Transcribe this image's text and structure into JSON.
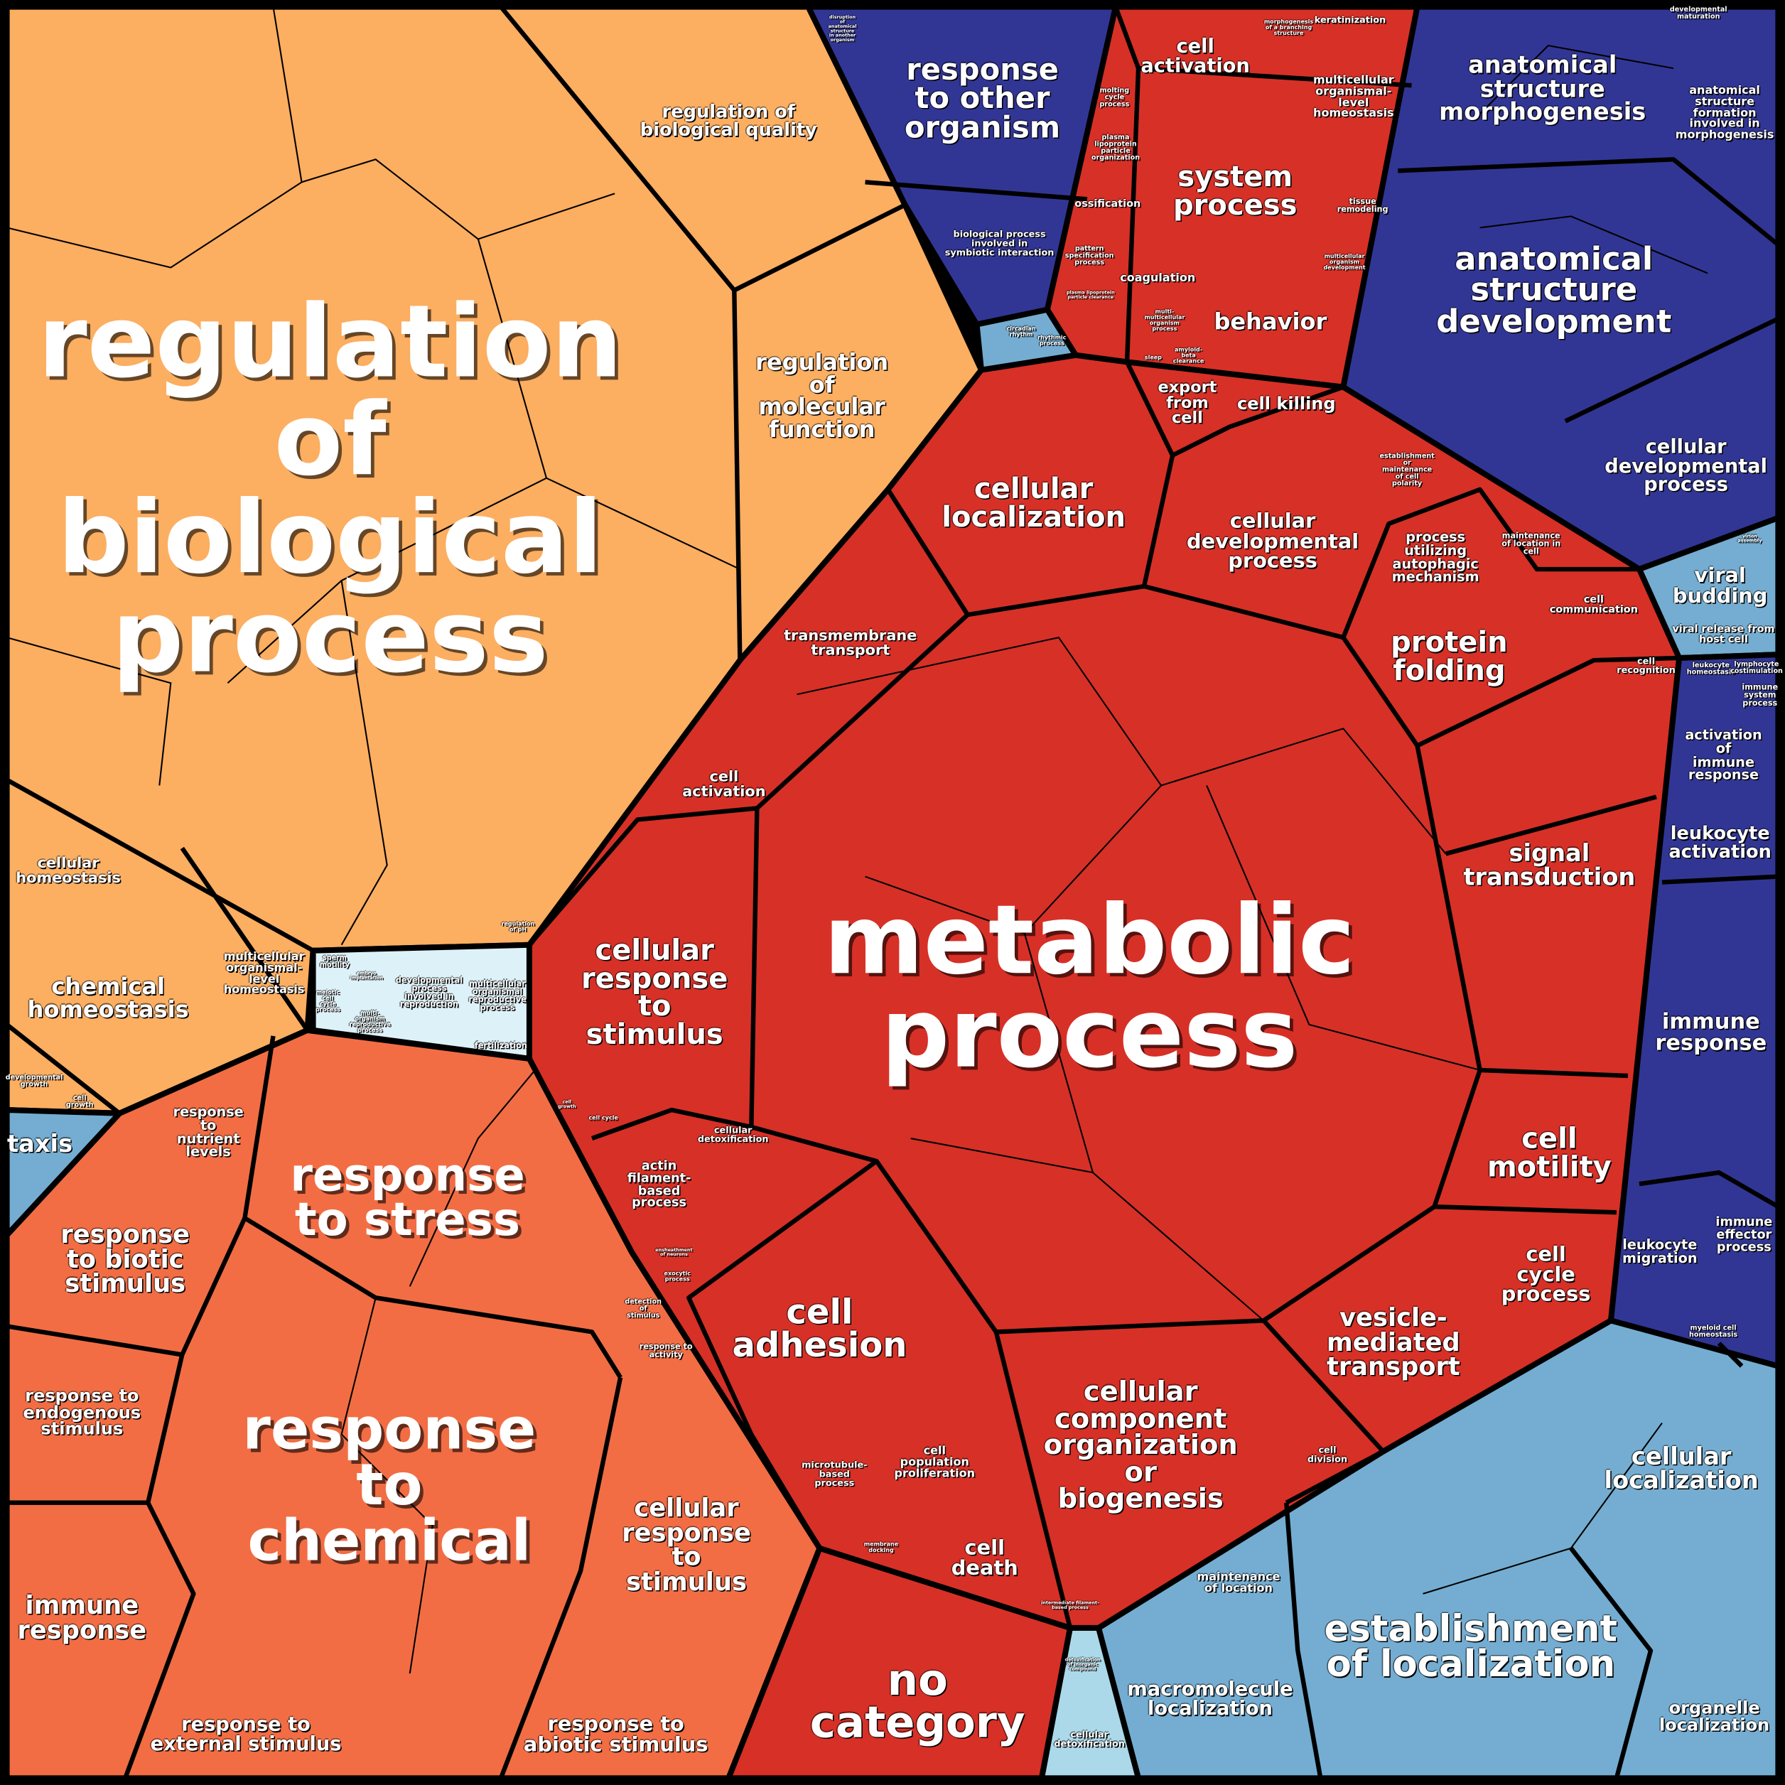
{
  "colors": {
    "orange": "#fcae61",
    "orange_red": "#f26d44",
    "red": "#d73027",
    "dark_blue": "#313695",
    "light_blue": "#74add1",
    "pale_blue": "#ddf1f8",
    "sky_blue": "#abd9e9",
    "border": "#000000",
    "text": "#ffffff"
  },
  "labels": {
    "regulation_of_biological_process": "regulation\nof\nbiological\nprocess",
    "regulation_of_biological_quality": "regulation of\nbiological quality",
    "regulation_of_molecular_function": "regulation\nof\nmolecular\nfunction",
    "cellular_homeostasis": "cellular\nhomeostasis",
    "chemical_homeostasis": "chemical\nhomeostasis",
    "multicellular_organismal_level_homeostasis_orange": "multicellular\norganismal-\nlevel\nhomeostasis",
    "developmental_growth": "developmental\ngrowth",
    "cell_growth_orange": "cell\ngrowth",
    "regulation_of_ph": "regulation\nof pH",
    "sperm_motility": "sperm\nmotility",
    "embryo_implantation": "embryo\nimplantation",
    "developmental_process_involved_in_reproduction": "developmental\nprocess\ninvolved in\nreproduction",
    "multicellular_organismal_reproductive_process": "multicellular\norganismal\nreproductive\nprocess",
    "meiotic_cell_cycle_process": "meiotic\ncell\ncycle\nprocess",
    "multi_organism_reproductive_process": "multi-\norganism\nreproductive\nprocess",
    "fertilization": "fertilization",
    "taxis": "taxis",
    "response_to_nutrient_levels": "response\nto\nnutrient\nlevels",
    "response_to_stress": "response\nto stress",
    "response_to_biotic_stimulus": "response\nto biotic\nstimulus",
    "response_to_endogenous_stimulus": "response to\nendogenous\nstimulus",
    "response_to_chemical": "response\nto\nchemical",
    "cellular_response_to_stimulus_orange": "cellular\nresponse\nto\nstimulus",
    "immune_response_orange": "immune\nresponse",
    "response_to_external_stimulus": "response to\nexternal stimulus",
    "response_to_abiotic_stimulus": "response to\nabiotic stimulus",
    "detection_of_stimulus": "detection\nof\nstimulus",
    "response_to_activity": "response to\nactivity",
    "response_to_other_organism": "response\nto other\norganism",
    "biological_process_involved_in_symbiotic_interaction": "biological process\ninvolved in\nsymbiotic interaction",
    "disruption_of_anatomical_structure": "disruption\nof\nanatomical\nstructure\nin another\norganism",
    "circadian_rhythm": "circadian\nrhythm",
    "rhythmic_process": "rhythmic\nprocess",
    "cell_activation_top": "cell\nactivation",
    "system_process": "system\nprocess",
    "multicellular_organismal_level_homeostasis_red": "multicellular\norganismal-\nlevel\nhomeostasis",
    "keratinization": "keratinization",
    "morphogenesis_of_a_branching_structure": "morphogenesis\nof a branching\nstructure",
    "molting_cycle_process": "molting\ncycle\nprocess",
    "plasma_lipoprotein_particle_organization": "plasma\nlipoprotein\nparticle\norganization",
    "ossification": "ossification",
    "pattern_specification_process": "pattern\nspecification\nprocess",
    "coagulation": "coagulation",
    "behavior": "behavior",
    "tissue_remodeling": "tissue\nremodeling",
    "multicellular_organism_development": "multicellular\norganism\ndevelopment",
    "multi_multicellular_organism_process": "multi-\nmulticellular\norganism\nprocess",
    "sleep": "sleep",
    "amyloid_beta_clearance": "amyloid-\nbeta\nclearance",
    "plasma_lipoprotein_particle_clearance": "plasma lipoprotein\nparticle clearance",
    "anatomical_structure_morphogenesis": "anatomical\nstructure\nmorphogenesis",
    "anatomical_structure_formation_involved_in_morphogenesis": "anatomical\nstructure\nformation\ninvolved in\nmorphogenesis",
    "developmental_maturation": "developmental\nmaturation",
    "anatomical_structure_development": "anatomical\nstructure\ndevelopment",
    "cellular_developmental_process_blue": "cellular\ndevelopmental\nprocess",
    "viral_budding": "viral\nbudding",
    "viral_release_from_host_cell": "viral release from\nhost cell",
    "virion_assembly": "virion\nassembly",
    "leukocyte_homeostasis": "leukocyte\nhomeostasis",
    "lymphocyte_costimulation": "lymphocyte\ncostimulation",
    "immune_system_process": "immune\nsystem\nprocess",
    "activation_of_immune_response": "activation\nof\nimmune\nresponse",
    "leukocyte_activation": "leukocyte\nactivation",
    "immune_response_blue": "immune\nresponse",
    "leukocyte_migration": "leukocyte\nmigration",
    "immune_effector_process": "immune\neffector\nprocess",
    "myeloid_cell_homeostasis": "myeloid cell\nhomeostasis",
    "cellular_localization_lightblue": "cellular\nlocalization",
    "establishment_of_localization": "establishment\nof localization",
    "macromolecule_localization": "macromolecule\nlocalization",
    "maintenance_of_location": "maintenance\nof location",
    "organelle_localization": "organelle\nlocalization",
    "detoxification_of_inorganic_compound": "detoxification\nof inorganic\ncompound",
    "cellular_detoxification_sky": "cellular\ndetoxification",
    "no_category": "no\ncategory",
    "cellular_localization_red": "cellular\nlocalization",
    "export_from_cell": "export\nfrom\ncell",
    "cell_killing": "cell killing",
    "cellular_developmental_process_red": "cellular\ndevelopmental\nprocess",
    "establishment_or_maintenance_of_cell_polarity": "establishment\nor\nmaintenance\nof cell\npolarity",
    "process_utilizing_autophagic_mechanism": "process\nutilizing\nautophagic\nmechanism",
    "maintenance_of_location_in_cell": "maintenance\nof location in\ncell",
    "cell_communication": "cell\ncommunication",
    "protein_folding": "protein\nfolding",
    "cell_recognition": "cell\nrecognition",
    "transmembrane_transport": "transmembrane\ntransport",
    "cell_activation_red": "cell\nactivation",
    "cellular_response_to_stimulus_red": "cellular\nresponse\nto\nstimulus",
    "metabolic_process": "metabolic\nprocess",
    "signal_transduction": "signal\ntransduction",
    "cell_motility": "cell\nmotility",
    "cell_cycle_process": "cell\ncycle\nprocess",
    "vesicle_mediated_transport": "vesicle-\nmediated\ntransport",
    "cellular_component_organization_or_biogenesis": "cellular\ncomponent\norganization\nor\nbiogenesis",
    "cell_adhesion": "cell\nadhesion",
    "cell_death": "cell\ndeath",
    "cell_population_proliferation": "cell\npopulation\nproliferation",
    "microtubule_based_process": "microtubule-\nbased\nprocess",
    "actin_filament_based_process": "actin\nfilament-\nbased\nprocess",
    "cellular_detoxification_red": "cellular\ndetoxification",
    "cell_cycle": "cell cycle",
    "cell_growth_red": "cell\ngrowth",
    "ensheathment_of_neurons": "ensheathment\nof neurons",
    "exocytic_process": "exocytic\nprocess",
    "cell_division": "cell\ndivision",
    "membrane_docking": "membrane\ndocking",
    "intermediate_filament_based_process": "intermediate filament-\nbased process"
  }
}
